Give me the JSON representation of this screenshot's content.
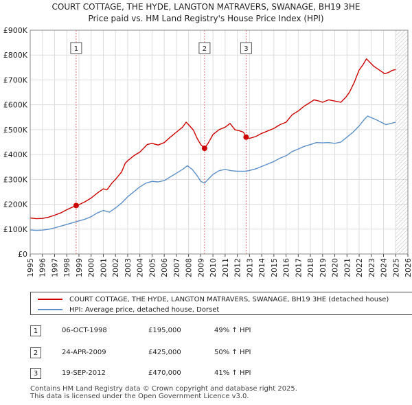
{
  "title_lines": [
    "COURT COTTAGE, THE HYDE, LANGTON MATRAVERS, SWANAGE, BH19 3HE",
    "Price paid vs. HM Land Registry's House Price Index (HPI)"
  ],
  "colors": {
    "property": "#cc0000",
    "hpi": "#5b8fc9",
    "sale_marker": "#cc0000",
    "grid": "#dddddd",
    "vline": "#e07070"
  },
  "chart_data": {
    "type": "line",
    "x_range": [
      1995,
      2026
    ],
    "ylim": [
      0,
      900000
    ],
    "y_ticks": [
      {
        "value": 0,
        "label": "£0"
      },
      {
        "value": 100000,
        "label": "£100K"
      },
      {
        "value": 200000,
        "label": "£200K"
      },
      {
        "value": 300000,
        "label": "£300K"
      },
      {
        "value": 400000,
        "label": "£400K"
      },
      {
        "value": 500000,
        "label": "£500K"
      },
      {
        "value": 600000,
        "label": "£600K"
      },
      {
        "value": 700000,
        "label": "£700K"
      },
      {
        "value": 800000,
        "label": "£800K"
      },
      {
        "value": 900000,
        "label": "£900K"
      }
    ],
    "x_ticks": [
      "1995",
      "1996",
      "1997",
      "1998",
      "1999",
      "2000",
      "2001",
      "2002",
      "2003",
      "2004",
      "2005",
      "2006",
      "2007",
      "2008",
      "2009",
      "2010",
      "2011",
      "2012",
      "2013",
      "2014",
      "2015",
      "2016",
      "2017",
      "2018",
      "2019",
      "2020",
      "2021",
      "2022",
      "2023",
      "2024",
      "2025",
      "2026"
    ],
    "grid": true,
    "future_hatch_start": 2025.0,
    "series": [
      {
        "name": "COURT COTTAGE, THE HYDE, LANGTON MATRAVERS, SWANAGE, BH19 3HE (detached house)",
        "color": "#cc0000",
        "points": [
          [
            1995.0,
            145000
          ],
          [
            1995.5,
            142000
          ],
          [
            1996.0,
            143000
          ],
          [
            1996.5,
            148000
          ],
          [
            1997.0,
            156000
          ],
          [
            1997.5,
            165000
          ],
          [
            1998.0,
            178000
          ],
          [
            1998.4,
            187000
          ],
          [
            1998.77,
            195000
          ],
          [
            1999.0,
            198000
          ],
          [
            1999.5,
            210000
          ],
          [
            2000.0,
            225000
          ],
          [
            2000.5,
            245000
          ],
          [
            2001.0,
            262000
          ],
          [
            2001.3,
            258000
          ],
          [
            2001.7,
            285000
          ],
          [
            2002.0,
            300000
          ],
          [
            2002.5,
            330000
          ],
          [
            2002.8,
            365000
          ],
          [
            2003.0,
            375000
          ],
          [
            2003.5,
            395000
          ],
          [
            2004.0,
            410000
          ],
          [
            2004.3,
            425000
          ],
          [
            2004.6,
            440000
          ],
          [
            2005.0,
            445000
          ],
          [
            2005.5,
            438000
          ],
          [
            2006.0,
            448000
          ],
          [
            2006.5,
            470000
          ],
          [
            2007.0,
            490000
          ],
          [
            2007.5,
            510000
          ],
          [
            2007.8,
            530000
          ],
          [
            2008.0,
            520000
          ],
          [
            2008.4,
            498000
          ],
          [
            2008.7,
            465000
          ],
          [
            2009.0,
            440000
          ],
          [
            2009.31,
            425000
          ],
          [
            2009.6,
            445000
          ],
          [
            2010.0,
            480000
          ],
          [
            2010.5,
            500000
          ],
          [
            2011.0,
            510000
          ],
          [
            2011.4,
            525000
          ],
          [
            2011.8,
            500000
          ],
          [
            2012.2,
            495000
          ],
          [
            2012.5,
            490000
          ],
          [
            2012.72,
            470000
          ],
          [
            2013.0,
            465000
          ],
          [
            2013.5,
            472000
          ],
          [
            2014.0,
            485000
          ],
          [
            2014.5,
            495000
          ],
          [
            2015.0,
            505000
          ],
          [
            2015.5,
            520000
          ],
          [
            2016.0,
            530000
          ],
          [
            2016.5,
            560000
          ],
          [
            2017.0,
            575000
          ],
          [
            2017.5,
            595000
          ],
          [
            2018.0,
            610000
          ],
          [
            2018.3,
            620000
          ],
          [
            2018.7,
            615000
          ],
          [
            2019.0,
            610000
          ],
          [
            2019.5,
            620000
          ],
          [
            2020.0,
            615000
          ],
          [
            2020.5,
            610000
          ],
          [
            2020.9,
            630000
          ],
          [
            2021.2,
            650000
          ],
          [
            2021.6,
            690000
          ],
          [
            2022.0,
            740000
          ],
          [
            2022.3,
            760000
          ],
          [
            2022.6,
            785000
          ],
          [
            2022.9,
            770000
          ],
          [
            2023.2,
            755000
          ],
          [
            2023.5,
            745000
          ],
          [
            2023.8,
            735000
          ],
          [
            2024.1,
            725000
          ],
          [
            2024.4,
            730000
          ],
          [
            2024.7,
            738000
          ],
          [
            2025.0,
            742000
          ]
        ]
      },
      {
        "name": "HPI: Average price, detached house, Dorset",
        "color": "#5b8fc9",
        "points": [
          [
            1995.0,
            97000
          ],
          [
            1995.5,
            95000
          ],
          [
            1996.0,
            96000
          ],
          [
            1996.5,
            99000
          ],
          [
            1997.0,
            105000
          ],
          [
            1997.5,
            112000
          ],
          [
            1998.0,
            119000
          ],
          [
            1998.77,
            130000
          ],
          [
            1999.0,
            133000
          ],
          [
            1999.5,
            140000
          ],
          [
            2000.0,
            150000
          ],
          [
            2000.5,
            165000
          ],
          [
            2001.0,
            175000
          ],
          [
            2001.5,
            168000
          ],
          [
            2002.0,
            185000
          ],
          [
            2002.5,
            205000
          ],
          [
            2003.0,
            230000
          ],
          [
            2003.5,
            250000
          ],
          [
            2004.0,
            270000
          ],
          [
            2004.5,
            285000
          ],
          [
            2005.0,
            292000
          ],
          [
            2005.5,
            290000
          ],
          [
            2006.0,
            295000
          ],
          [
            2006.5,
            310000
          ],
          [
            2007.0,
            325000
          ],
          [
            2007.5,
            340000
          ],
          [
            2007.9,
            355000
          ],
          [
            2008.3,
            340000
          ],
          [
            2008.7,
            315000
          ],
          [
            2009.0,
            292000
          ],
          [
            2009.31,
            285000
          ],
          [
            2009.6,
            300000
          ],
          [
            2010.0,
            320000
          ],
          [
            2010.5,
            335000
          ],
          [
            2011.0,
            340000
          ],
          [
            2011.5,
            335000
          ],
          [
            2012.0,
            333000
          ],
          [
            2012.72,
            333000
          ],
          [
            2013.0,
            336000
          ],
          [
            2013.5,
            342000
          ],
          [
            2014.0,
            352000
          ],
          [
            2014.5,
            362000
          ],
          [
            2015.0,
            372000
          ],
          [
            2015.5,
            385000
          ],
          [
            2016.0,
            395000
          ],
          [
            2016.5,
            412000
          ],
          [
            2017.0,
            422000
          ],
          [
            2017.5,
            433000
          ],
          [
            2018.0,
            440000
          ],
          [
            2018.5,
            448000
          ],
          [
            2019.0,
            447000
          ],
          [
            2019.5,
            448000
          ],
          [
            2020.0,
            445000
          ],
          [
            2020.5,
            450000
          ],
          [
            2021.0,
            470000
          ],
          [
            2021.5,
            490000
          ],
          [
            2022.0,
            515000
          ],
          [
            2022.4,
            540000
          ],
          [
            2022.7,
            555000
          ],
          [
            2023.0,
            548000
          ],
          [
            2023.4,
            540000
          ],
          [
            2023.8,
            530000
          ],
          [
            2024.2,
            520000
          ],
          [
            2024.6,
            525000
          ],
          [
            2025.0,
            530000
          ]
        ]
      }
    ],
    "sales": [
      {
        "id": "1",
        "x": 1998.77,
        "y": 195000
      },
      {
        "id": "2",
        "x": 2009.31,
        "y": 425000
      },
      {
        "id": "3",
        "x": 2012.72,
        "y": 470000
      }
    ]
  },
  "legend": [
    {
      "label": "COURT COTTAGE, THE HYDE, LANGTON MATRAVERS, SWANAGE, BH19 3HE (detached house)",
      "color": "#cc0000"
    },
    {
      "label": "HPI: Average price, detached house, Dorset",
      "color": "#5b8fc9"
    }
  ],
  "transactions": [
    {
      "num": "1",
      "date": "06-OCT-1998",
      "price": "£195,000",
      "hpi": "49% ↑ HPI"
    },
    {
      "num": "2",
      "date": "24-APR-2009",
      "price": "£425,000",
      "hpi": "50% ↑ HPI"
    },
    {
      "num": "3",
      "date": "19-SEP-2012",
      "price": "£470,000",
      "hpi": "41% ↑ HPI"
    }
  ],
  "footer": {
    "line1": "Contains HM Land Registry data © Crown copyright and database right 2025.",
    "line2": "This data is licensed under the Open Government Licence v3.0."
  }
}
